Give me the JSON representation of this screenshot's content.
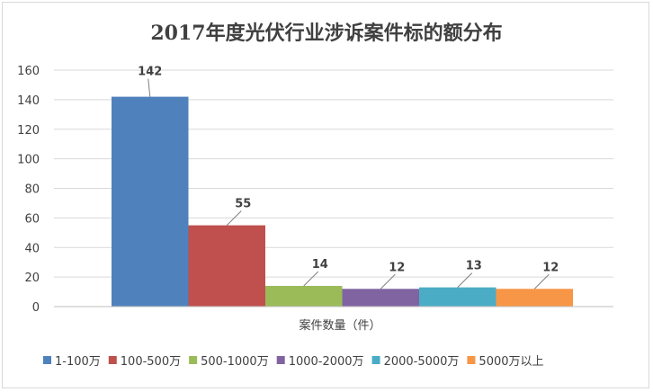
{
  "chart_data": {
    "type": "bar",
    "title": "2017年度光伏行业涉诉案件标的额分布",
    "xlabel": "案件数量（件）",
    "ylabel": "",
    "ylim": [
      0,
      160
    ],
    "yticks": [
      0,
      20,
      40,
      60,
      80,
      100,
      120,
      140,
      160
    ],
    "grid": true,
    "legend_position": "bottom",
    "series": [
      {
        "name": "1-100万",
        "value": 142,
        "color": "#4f81bd"
      },
      {
        "name": "100-500万",
        "value": 55,
        "color": "#c0504d"
      },
      {
        "name": "500-1000万",
        "value": 14,
        "color": "#9bbb59"
      },
      {
        "name": "1000-2000万",
        "value": 12,
        "color": "#8064a2"
      },
      {
        "name": "2000-5000万",
        "value": 13,
        "color": "#4bacc6"
      },
      {
        "name": "5000万以上",
        "value": 12,
        "color": "#f79646"
      }
    ]
  }
}
